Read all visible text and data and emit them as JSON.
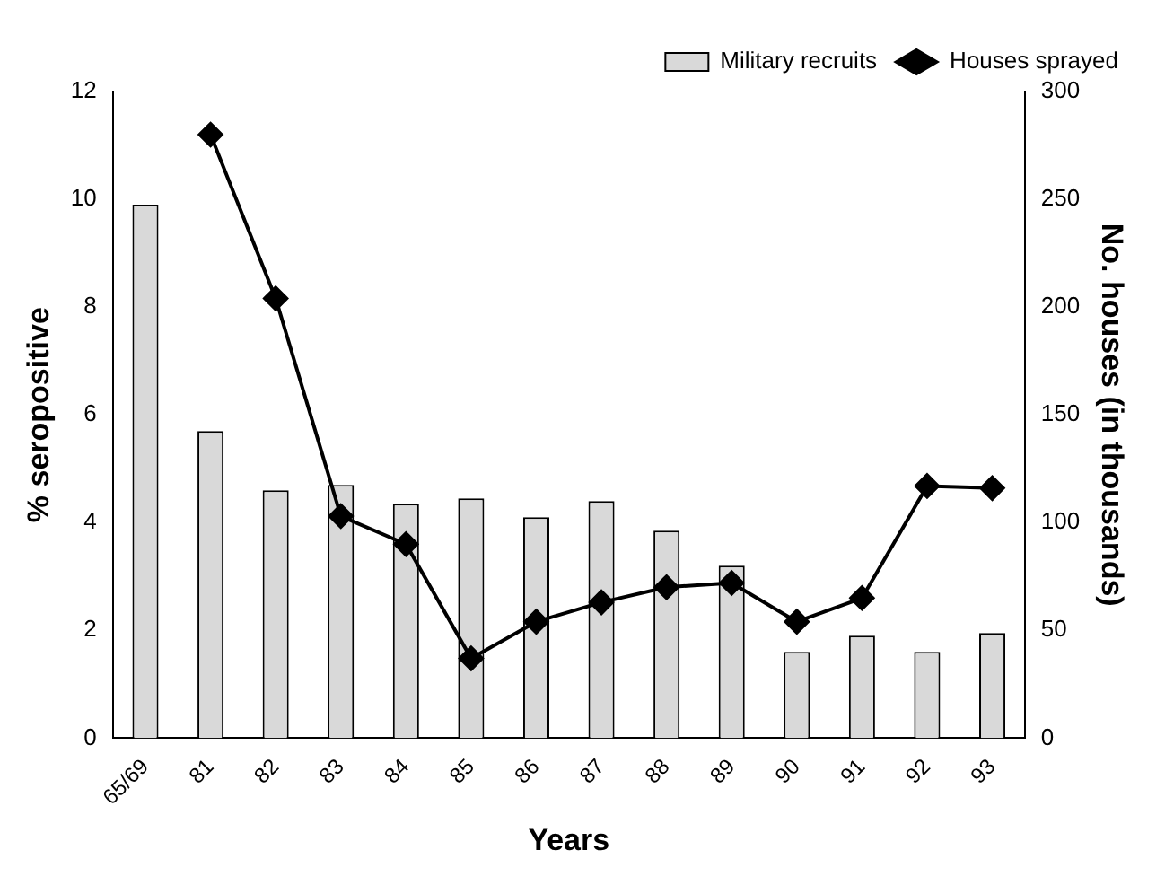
{
  "chart_data": {
    "type": "bar",
    "xlabel": "Years",
    "ylabel": "% seropositive",
    "y2label": "No. houses (in thousands)",
    "categories": [
      "65/69",
      "81",
      "82",
      "83",
      "84",
      "85",
      "86",
      "87",
      "88",
      "89",
      "90",
      "91",
      "92",
      "93"
    ],
    "series": [
      {
        "name": "Military recruits",
        "color": "#d9d9d9",
        "values": [
          9.9,
          5.7,
          4.6,
          4.7,
          4.35,
          4.45,
          4.1,
          4.4,
          3.85,
          3.2,
          1.6,
          1.9,
          1.6,
          1.95
        ]
      },
      {
        "name": "Houses sprayed",
        "type": "line",
        "axis": "y2",
        "color": "#000000",
        "marker": "diamond",
        "values": [
          null,
          280,
          204,
          103,
          90,
          37,
          54,
          63,
          70,
          72,
          54,
          65,
          117,
          116
        ]
      }
    ],
    "ylim": [
      0,
      12
    ],
    "yticks": [
      0,
      2,
      4,
      6,
      8,
      10,
      12
    ],
    "y2lim": [
      0,
      300
    ],
    "y2ticks": [
      0,
      50,
      100,
      150,
      200,
      250,
      300
    ],
    "grid": false,
    "legend": "top right"
  }
}
